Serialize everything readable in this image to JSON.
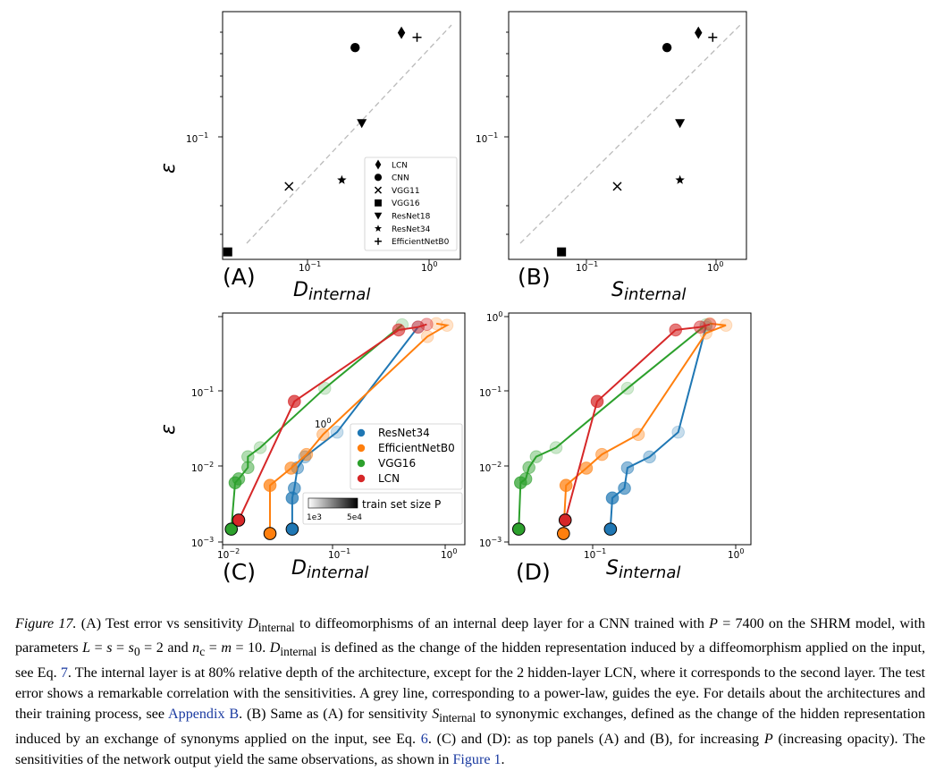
{
  "panels": {
    "A": {
      "letter": "(A)",
      "xlabel_main": "D",
      "xlabel_sub": "internal"
    },
    "B": {
      "letter": "(B)",
      "xlabel_main": "S",
      "xlabel_sub": "internal"
    },
    "C": {
      "letter": "(C)",
      "xlabel_main": "D",
      "xlabel_sub": "internal"
    },
    "D": {
      "letter": "(D)",
      "xlabel_main": "S",
      "xlabel_sub": "internal"
    }
  },
  "ylabel": "ε",
  "ticks": {
    "tenm1": "10",
    "exp_m1": "−1",
    "exp_0": "0",
    "exp_m2": "−2",
    "exp_m3": "−3"
  },
  "legend_top": [
    "LCN",
    "CNN",
    "VGG11",
    "VGG16",
    "ResNet18",
    "ResNet34",
    "EfficientNetB0"
  ],
  "legend_bottom": {
    "entries": [
      {
        "name": "ResNet34",
        "color": "#1f77b4"
      },
      {
        "name": "EfficientNetB0",
        "color": "#ff7f0e"
      },
      {
        "name": "VGG16",
        "color": "#2ca02c"
      },
      {
        "name": "LCN",
        "color": "#d62728"
      }
    ],
    "colorbar_label": "train set size P",
    "colorbar_min": "1e3",
    "colorbar_max": "5e4",
    "stray_tick": "10"
  },
  "chart_data": [
    {
      "type": "scatter",
      "panel": "A",
      "xlabel": "D_internal",
      "ylabel": "ε",
      "xscale": "log",
      "yscale": "log",
      "xlim": [
        0.02,
        1.6
      ],
      "ylim": [
        0.012,
        0.6
      ],
      "series": [
        {
          "name": "LCN",
          "marker": "diamond",
          "x": 0.54,
          "y": 0.43
        },
        {
          "name": "CNN",
          "marker": "circle",
          "x": 0.23,
          "y": 0.34
        },
        {
          "name": "VGG11",
          "marker": "x",
          "x": 0.068,
          "y": 0.038
        },
        {
          "name": "VGG16",
          "marker": "square",
          "x": 0.022,
          "y": 0.0135
        },
        {
          "name": "ResNet18",
          "marker": "triangle-down",
          "x": 0.26,
          "y": 0.103
        },
        {
          "name": "ResNet34",
          "marker": "star",
          "x": 0.18,
          "y": 0.042
        },
        {
          "name": "EfficientNetB0",
          "marker": "plus",
          "x": 0.72,
          "y": 0.4
        }
      ],
      "guide_line": true,
      "legend_position": "lower-right"
    },
    {
      "type": "scatter",
      "panel": "B",
      "xlabel": "S_internal",
      "ylabel": "ε",
      "xscale": "log",
      "yscale": "log",
      "xlim": [
        0.02,
        1.6
      ],
      "ylim": [
        0.012,
        0.6
      ],
      "series": [
        {
          "name": "LCN",
          "marker": "diamond",
          "x": 0.66,
          "y": 0.43
        },
        {
          "name": "CNN",
          "marker": "circle",
          "x": 0.37,
          "y": 0.34
        },
        {
          "name": "VGG11",
          "marker": "x",
          "x": 0.148,
          "y": 0.038
        },
        {
          "name": "VGG16",
          "marker": "square",
          "x": 0.053,
          "y": 0.0135
        },
        {
          "name": "ResNet18",
          "marker": "triangle-down",
          "x": 0.47,
          "y": 0.103
        },
        {
          "name": "ResNet34",
          "marker": "star",
          "x": 0.47,
          "y": 0.042
        },
        {
          "name": "EfficientNetB0",
          "marker": "plus",
          "x": 0.86,
          "y": 0.4
        }
      ],
      "guide_line": true
    },
    {
      "type": "line",
      "panel": "C",
      "xlabel": "D_internal",
      "ylabel": "ε",
      "xscale": "log",
      "yscale": "log",
      "xlim": [
        0.01,
        1.6
      ],
      "ylim": [
        0.001,
        1.1
      ],
      "series": [
        {
          "name": "ResNet34",
          "color": "#1f77b4",
          "points": [
            [
              0.043,
              0.0016
            ],
            [
              0.043,
              0.0041
            ],
            [
              0.045,
              0.0055
            ],
            [
              0.048,
              0.0102
            ],
            [
              0.056,
              0.0142
            ],
            [
              0.11,
              0.03
            ],
            [
              0.6,
              0.72
            ]
          ]
        },
        {
          "name": "EfficientNetB0",
          "color": "#ff7f0e",
          "points": [
            [
              0.027,
              0.0014
            ],
            [
              0.027,
              0.006
            ],
            [
              0.042,
              0.0101
            ],
            [
              0.058,
              0.0153
            ],
            [
              0.082,
              0.028
            ],
            [
              0.73,
              0.54
            ],
            [
              1.1,
              0.76
            ],
            [
              0.88,
              0.8
            ]
          ]
        },
        {
          "name": "VGG16",
          "color": "#2ca02c",
          "points": [
            [
              0.012,
              0.0016
            ],
            [
              0.013,
              0.0065
            ],
            [
              0.014,
              0.0073
            ],
            [
              0.017,
              0.0103
            ],
            [
              0.017,
              0.0143
            ],
            [
              0.022,
              0.0188
            ],
            [
              0.085,
              0.113
            ],
            [
              0.43,
              0.77
            ]
          ]
        },
        {
          "name": "LCN",
          "color": "#d62728",
          "points": [
            [
              0.014,
              0.0021
            ],
            [
              0.045,
              0.076
            ],
            [
              0.4,
              0.66
            ],
            [
              0.6,
              0.72
            ],
            [
              0.72,
              0.78
            ]
          ]
        }
      ],
      "legend_position": "center-right",
      "colorbar": {
        "label": "train set size P",
        "min": "1e3",
        "max": "5e4"
      }
    },
    {
      "type": "line",
      "panel": "D",
      "xlabel": "S_internal",
      "ylabel": "ε",
      "xscale": "log",
      "yscale": "log",
      "xlim": [
        0.027,
        1.6
      ],
      "ylim": [
        0.001,
        1.1
      ],
      "series": [
        {
          "name": "ResNet34",
          "color": "#1f77b4",
          "points": [
            [
              0.15,
              0.0016
            ],
            [
              0.155,
              0.0041
            ],
            [
              0.19,
              0.0055
            ],
            [
              0.2,
              0.0102
            ],
            [
              0.29,
              0.0142
            ],
            [
              0.47,
              0.03
            ],
            [
              0.75,
              0.72
            ]
          ]
        },
        {
          "name": "EfficientNetB0",
          "color": "#ff7f0e",
          "points": [
            [
              0.068,
              0.0014
            ],
            [
              0.071,
              0.006
            ],
            [
              0.1,
              0.0101
            ],
            [
              0.13,
              0.0153
            ],
            [
              0.24,
              0.028
            ],
            [
              0.75,
              0.6
            ],
            [
              1.05,
              0.76
            ],
            [
              0.8,
              0.8
            ]
          ]
        },
        {
          "name": "VGG16",
          "color": "#2ca02c",
          "points": [
            [
              0.032,
              0.0016
            ],
            [
              0.033,
              0.0065
            ],
            [
              0.036,
              0.0073
            ],
            [
              0.038,
              0.0103
            ],
            [
              0.043,
              0.0143
            ],
            [
              0.06,
              0.0188
            ],
            [
              0.2,
              0.113
            ],
            [
              0.75,
              0.77
            ]
          ]
        },
        {
          "name": "LCN",
          "color": "#d62728",
          "points": [
            [
              0.07,
              0.0021
            ],
            [
              0.12,
              0.076
            ],
            [
              0.45,
              0.66
            ],
            [
              0.68,
              0.72
            ],
            [
              0.8,
              0.78
            ]
          ]
        }
      ]
    }
  ],
  "caption": {
    "label": "Figure 17.",
    "seg1": " (A) Test error vs sensitivity ",
    "sym_D": "D",
    "sub_internal": "internal",
    "seg2": " to diffeomorphisms of an internal deep layer for a CNN trained with ",
    "sym_P": "P",
    "seg3": " = 7400 on the SHRM model, with parameters ",
    "sym_L": "L",
    "seg4": " = ",
    "sym_s": "s",
    "seg5": " = ",
    "sym_s0": "s",
    "sub_0": "0",
    "seg6": " = 2 and ",
    "sym_n": "n",
    "sub_c": "c",
    "seg7": " = ",
    "sym_m": "m",
    "seg8": " = 10. ",
    "seg9": " is defined as the change of the hidden representation induced by a diffeomorphism applied on the input, see Eq. ",
    "ref_eq7": "7",
    "seg10": ". The internal layer is at 80% relative depth of the architecture, except for the 2 hidden-layer LCN, where it corresponds to the second layer. The test error shows a remarkable correlation with the sensitivities. A grey line, corresponding to a power-law, guides the eye. For details about the architectures and their training process, see ",
    "ref_appB": "Appendix B",
    "seg11": ". (B) Same as (A) for sensitivity ",
    "sym_S": "S",
    "seg12": " to synonymic exchanges, defined as the change of the hidden representation induced by an exchange of synonyms applied on the input, see Eq. ",
    "ref_eq6": "6",
    "seg13": ". (C) and (D): as top panels (A) and (B), for increasing ",
    "seg14": " (increasing opacity). The sensitivities of the network output yield the same observations, as shown in ",
    "ref_fig1": "Figure 1",
    "seg15": "."
  }
}
